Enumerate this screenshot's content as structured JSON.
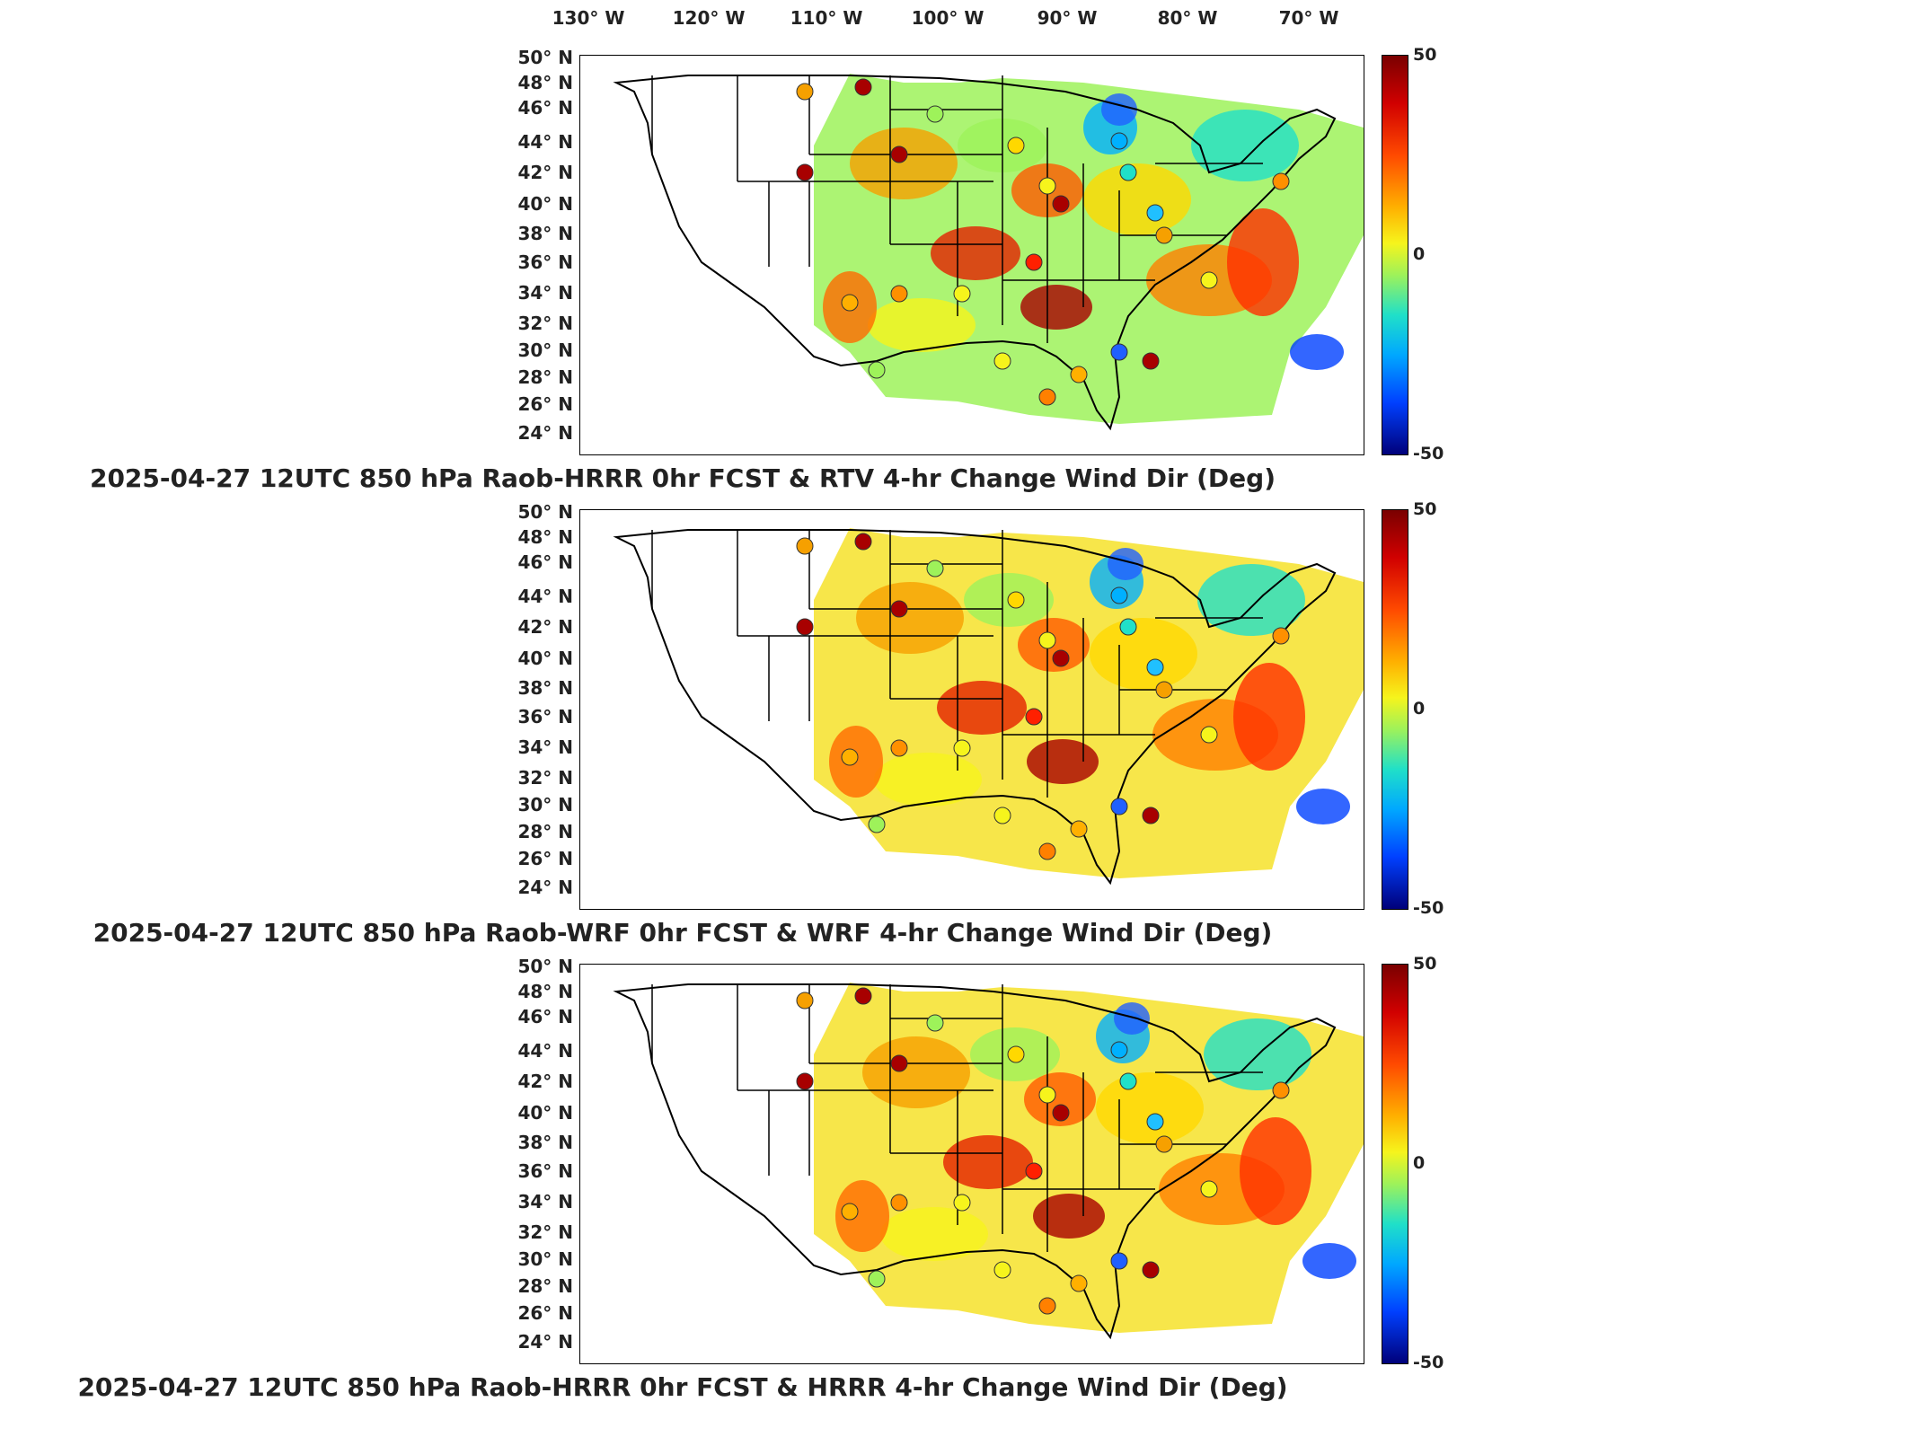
{
  "longitude_labels": [
    "130° W",
    "120° W",
    "110° W",
    "100° W",
    "90° W",
    "80° W",
    "70° W"
  ],
  "latitude_labels": [
    "50° N",
    "48° N",
    "46° N",
    "44° N",
    "42° N",
    "40° N",
    "38° N",
    "36° N",
    "34° N",
    "32° N",
    "30° N",
    "28° N",
    "26° N",
    "24° N"
  ],
  "colorbar": {
    "max_label": "50",
    "mid_label": "0",
    "min_label": "-50"
  },
  "panels": [
    {
      "title": "2025-04-27 12UTC 850 hPa Raob-HRRR 0hr FCST & RTV 4-hr Change Wind Dir (Deg)"
    },
    {
      "title": "2025-04-27 12UTC 850 hPa Raob-WRF 0hr FCST & WRF 4-hr Change Wind Dir (Deg)"
    },
    {
      "title": "2025-04-27 12UTC 850 hPa Raob-HRRR 0hr FCST & HRRR 4-hr Change Wind Dir (Deg)"
    }
  ],
  "colors": {
    "high": "#a80000",
    "mid": "#f6f41c",
    "low": "#00007a"
  }
}
